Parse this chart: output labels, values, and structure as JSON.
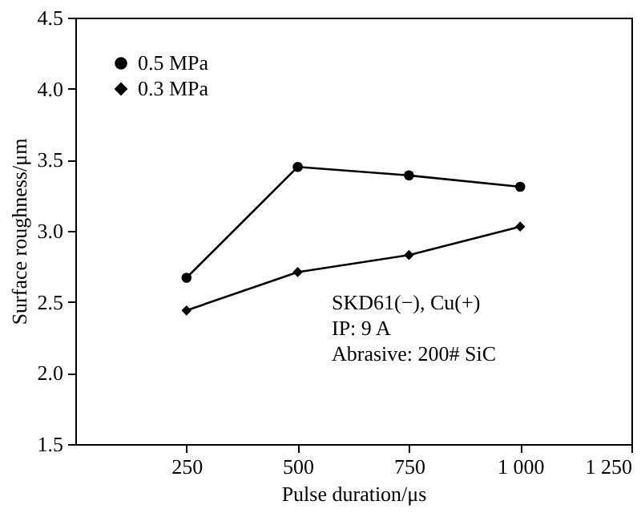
{
  "chart_data": {
    "type": "line",
    "x": [
      250,
      500,
      750,
      1000
    ],
    "series": [
      {
        "name": "0.5 MPa",
        "color": "#000000",
        "marker": "circle",
        "values": [
          2.67,
          3.45,
          3.39,
          3.31
        ]
      },
      {
        "name": "0.3 MPa",
        "color": "#000000",
        "marker": "diamond",
        "values": [
          2.44,
          2.71,
          2.83,
          3.03
        ]
      }
    ],
    "xlabel": "Pulse duration/μs",
    "ylabel": "Surface roughness/μm",
    "xlim": [
      0,
      1250
    ],
    "ylim": [
      1.5,
      4.5
    ],
    "xticks": [
      250,
      500,
      750,
      {
        "value": 1000,
        "label": "1 000"
      },
      {
        "value": 1250,
        "label": "1 250"
      }
    ],
    "yticks": [
      1.5,
      {
        "value": 2,
        "label": "2.0"
      },
      2.5,
      {
        "value": 3,
        "label": "3.0"
      },
      3.5,
      {
        "value": 4,
        "label": "4.0"
      },
      4.5
    ],
    "annotations": [
      "SKD61(−), Cu(+)",
      "IP: 9 A",
      "Abrasive: 200# SiC"
    ],
    "legend": "top left",
    "grid": false,
    "line_style": "solid"
  }
}
